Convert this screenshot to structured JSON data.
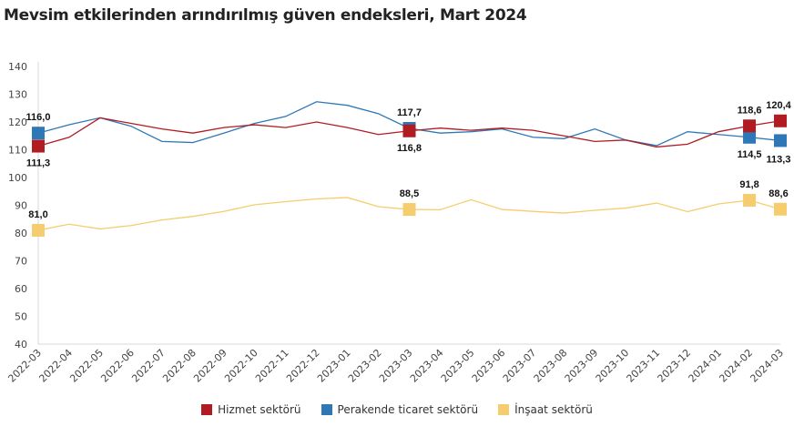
{
  "title": "Mevsim etkilerinden arındırılmış güven endeksleri, Mart 2024",
  "chart_data": {
    "type": "line",
    "title": "Mevsim etkilerinden arındırılmış güven endeksleri, Mart 2024",
    "xlabel": "",
    "ylabel": "",
    "ylim": [
      40,
      140
    ],
    "yticks": [
      40,
      50,
      60,
      70,
      80,
      90,
      100,
      110,
      120,
      130,
      140
    ],
    "grid": false,
    "legend": "bottom",
    "categories": [
      "2022-03",
      "2022-04",
      "2022-05",
      "2022-06",
      "2022-07",
      "2022-08",
      "2022-09",
      "2022-10",
      "2022-11",
      "2022-12",
      "2023-01",
      "2023-02",
      "2023-03",
      "2023-04",
      "2023-05",
      "2023-06",
      "2023-07",
      "2023-08",
      "2023-09",
      "2023-10",
      "2023-11",
      "2023-12",
      "2024-01",
      "2024-02",
      "2024-03"
    ],
    "series": [
      {
        "name": "Hizmet sektörü",
        "color": "#b01c22",
        "values": [
          111.3,
          114.5,
          121.5,
          119.5,
          117.5,
          116,
          118,
          119,
          118,
          120,
          118,
          115.5,
          116.8,
          117.8,
          117,
          117.8,
          117,
          115,
          113,
          113.5,
          111,
          112,
          116.5,
          118.6,
          120.4
        ],
        "labels": {
          "0": "111,3",
          "12": "116,8",
          "23": "118,6",
          "24": "120,4"
        }
      },
      {
        "name": "Perakende ticaret sektörü",
        "color": "#2e78b7",
        "values": [
          116.0,
          119,
          121.5,
          118.5,
          113,
          112.6,
          116,
          119.5,
          122,
          127.3,
          126,
          123,
          117.7,
          116,
          116.5,
          117.5,
          114.5,
          114,
          117.5,
          113.5,
          111.5,
          116.5,
          115.5,
          114.5,
          113.3
        ],
        "labels": {
          "0": "116,0",
          "12": "117,7",
          "23": "114,5",
          "24": "113,3"
        }
      },
      {
        "name": "İnşaat sektörü",
        "color": "#f6cd6e",
        "values": [
          81.0,
          83.2,
          81.5,
          82.7,
          84.7,
          86,
          87.8,
          90.2,
          91.3,
          92.3,
          92.8,
          89.5,
          88.5,
          88.4,
          92,
          88.5,
          87.8,
          87.2,
          88.2,
          89,
          90.8,
          87.7,
          90.5,
          91.8,
          88.6
        ],
        "labels": {
          "0": "81,0",
          "12": "88,5",
          "23": "91,8",
          "24": "88,6"
        }
      }
    ]
  }
}
